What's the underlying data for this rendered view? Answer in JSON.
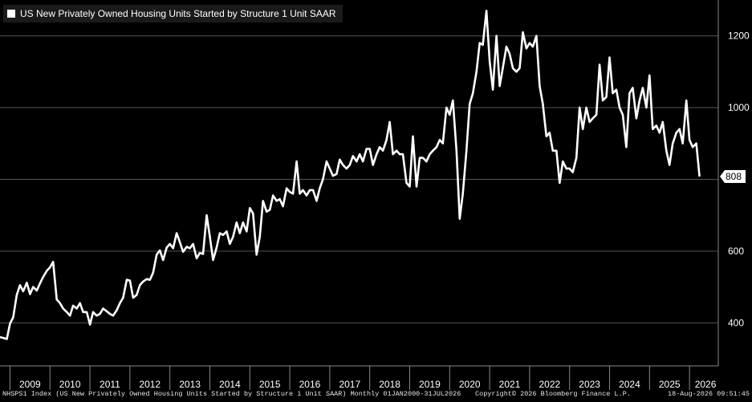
{
  "chart_data": {
    "type": "line",
    "title": "US New Privately Owned Housing Units Started by Structure 1 Unit SAAR",
    "series": [
      {
        "name": "US New Privately Owned Housing Units Started by Structure 1 Unit SAAR",
        "color": "#ffffff",
        "last_value_label": "808",
        "values": [
          [
            2008.75,
            360
          ],
          [
            2008.83,
            358
          ],
          [
            2008.92,
            355
          ],
          [
            2009.0,
            398
          ],
          [
            2009.08,
            415
          ],
          [
            2009.17,
            478
          ],
          [
            2009.25,
            505
          ],
          [
            2009.33,
            488
          ],
          [
            2009.42,
            512
          ],
          [
            2009.5,
            480
          ],
          [
            2009.58,
            500
          ],
          [
            2009.67,
            490
          ],
          [
            2009.75,
            510
          ],
          [
            2009.83,
            528
          ],
          [
            2009.92,
            545
          ],
          [
            2010.0,
            555
          ],
          [
            2010.08,
            570
          ],
          [
            2010.17,
            465
          ],
          [
            2010.25,
            455
          ],
          [
            2010.33,
            440
          ],
          [
            2010.42,
            430
          ],
          [
            2010.5,
            420
          ],
          [
            2010.58,
            448
          ],
          [
            2010.67,
            440
          ],
          [
            2010.75,
            455
          ],
          [
            2010.83,
            430
          ],
          [
            2010.92,
            430
          ],
          [
            2011.0,
            395
          ],
          [
            2011.08,
            430
          ],
          [
            2011.17,
            420
          ],
          [
            2011.25,
            425
          ],
          [
            2011.33,
            440
          ],
          [
            2011.42,
            432
          ],
          [
            2011.5,
            425
          ],
          [
            2011.58,
            420
          ],
          [
            2011.67,
            435
          ],
          [
            2011.75,
            455
          ],
          [
            2011.83,
            470
          ],
          [
            2011.92,
            520
          ],
          [
            2012.0,
            518
          ],
          [
            2012.08,
            470
          ],
          [
            2012.17,
            478
          ],
          [
            2012.25,
            505
          ],
          [
            2012.33,
            515
          ],
          [
            2012.42,
            522
          ],
          [
            2012.5,
            520
          ],
          [
            2012.58,
            540
          ],
          [
            2012.67,
            590
          ],
          [
            2012.75,
            602
          ],
          [
            2012.83,
            575
          ],
          [
            2012.92,
            610
          ],
          [
            2013.0,
            620
          ],
          [
            2013.08,
            608
          ],
          [
            2013.17,
            650
          ],
          [
            2013.25,
            625
          ],
          [
            2013.33,
            598
          ],
          [
            2013.42,
            612
          ],
          [
            2013.5,
            608
          ],
          [
            2013.58,
            620
          ],
          [
            2013.67,
            580
          ],
          [
            2013.75,
            595
          ],
          [
            2013.83,
            592
          ],
          [
            2013.92,
            700
          ],
          [
            2014.0,
            640
          ],
          [
            2014.08,
            575
          ],
          [
            2014.17,
            610
          ],
          [
            2014.25,
            650
          ],
          [
            2014.33,
            645
          ],
          [
            2014.42,
            655
          ],
          [
            2014.5,
            620
          ],
          [
            2014.58,
            640
          ],
          [
            2014.67,
            680
          ],
          [
            2014.75,
            650
          ],
          [
            2014.83,
            680
          ],
          [
            2014.92,
            655
          ],
          [
            2015.0,
            720
          ],
          [
            2015.08,
            705
          ],
          [
            2015.17,
            590
          ],
          [
            2015.25,
            640
          ],
          [
            2015.33,
            740
          ],
          [
            2015.42,
            710
          ],
          [
            2015.5,
            715
          ],
          [
            2015.58,
            755
          ],
          [
            2015.67,
            740
          ],
          [
            2015.75,
            745
          ],
          [
            2015.83,
            725
          ],
          [
            2015.92,
            775
          ],
          [
            2016.0,
            765
          ],
          [
            2016.08,
            760
          ],
          [
            2016.17,
            850
          ],
          [
            2016.25,
            760
          ],
          [
            2016.33,
            770
          ],
          [
            2016.42,
            755
          ],
          [
            2016.5,
            770
          ],
          [
            2016.58,
            770
          ],
          [
            2016.67,
            740
          ],
          [
            2016.75,
            775
          ],
          [
            2016.83,
            800
          ],
          [
            2016.92,
            850
          ],
          [
            2017.0,
            830
          ],
          [
            2017.08,
            810
          ],
          [
            2017.17,
            815
          ],
          [
            2017.25,
            855
          ],
          [
            2017.33,
            840
          ],
          [
            2017.42,
            830
          ],
          [
            2017.5,
            840
          ],
          [
            2017.58,
            865
          ],
          [
            2017.67,
            850
          ],
          [
            2017.75,
            870
          ],
          [
            2017.83,
            850
          ],
          [
            2017.92,
            885
          ],
          [
            2018.0,
            885
          ],
          [
            2018.08,
            840
          ],
          [
            2018.17,
            870
          ],
          [
            2018.25,
            890
          ],
          [
            2018.33,
            880
          ],
          [
            2018.42,
            910
          ],
          [
            2018.5,
            960
          ],
          [
            2018.58,
            870
          ],
          [
            2018.67,
            880
          ],
          [
            2018.75,
            870
          ],
          [
            2018.83,
            870
          ],
          [
            2018.92,
            790
          ],
          [
            2019.0,
            780
          ],
          [
            2019.08,
            920
          ],
          [
            2019.17,
            780
          ],
          [
            2019.25,
            860
          ],
          [
            2019.33,
            860
          ],
          [
            2019.42,
            850
          ],
          [
            2019.5,
            870
          ],
          [
            2019.58,
            880
          ],
          [
            2019.67,
            890
          ],
          [
            2019.75,
            910
          ],
          [
            2019.83,
            900
          ],
          [
            2019.92,
            1000
          ],
          [
            2020.0,
            980
          ],
          [
            2020.08,
            1020
          ],
          [
            2020.17,
            880
          ],
          [
            2020.25,
            690
          ],
          [
            2020.33,
            760
          ],
          [
            2020.42,
            880
          ],
          [
            2020.5,
            1010
          ],
          [
            2020.58,
            1040
          ],
          [
            2020.67,
            1100
          ],
          [
            2020.75,
            1180
          ],
          [
            2020.83,
            1175
          ],
          [
            2020.92,
            1270
          ],
          [
            2021.0,
            1130
          ],
          [
            2021.08,
            1050
          ],
          [
            2021.17,
            1200
          ],
          [
            2021.25,
            1060
          ],
          [
            2021.33,
            1110
          ],
          [
            2021.42,
            1170
          ],
          [
            2021.5,
            1150
          ],
          [
            2021.58,
            1110
          ],
          [
            2021.67,
            1100
          ],
          [
            2021.75,
            1110
          ],
          [
            2021.83,
            1210
          ],
          [
            2021.92,
            1165
          ],
          [
            2022.0,
            1180
          ],
          [
            2022.08,
            1170
          ],
          [
            2022.17,
            1200
          ],
          [
            2022.25,
            1060
          ],
          [
            2022.33,
            1010
          ],
          [
            2022.42,
            920
          ],
          [
            2022.5,
            930
          ],
          [
            2022.58,
            880
          ],
          [
            2022.67,
            880
          ],
          [
            2022.75,
            790
          ],
          [
            2022.83,
            850
          ],
          [
            2022.92,
            830
          ],
          [
            2023.0,
            830
          ],
          [
            2023.08,
            820
          ],
          [
            2023.17,
            860
          ],
          [
            2023.25,
            1000
          ],
          [
            2023.33,
            940
          ],
          [
            2023.42,
            1000
          ],
          [
            2023.5,
            960
          ],
          [
            2023.58,
            970
          ],
          [
            2023.67,
            980
          ],
          [
            2023.75,
            1120
          ],
          [
            2023.83,
            1020
          ],
          [
            2023.92,
            1030
          ],
          [
            2024.0,
            1140
          ],
          [
            2024.08,
            1040
          ],
          [
            2024.17,
            1050
          ],
          [
            2024.25,
            1000
          ],
          [
            2024.33,
            980
          ],
          [
            2024.42,
            890
          ],
          [
            2024.5,
            1040
          ],
          [
            2024.58,
            1055
          ],
          [
            2024.67,
            970
          ],
          [
            2024.75,
            1020
          ],
          [
            2024.83,
            1055
          ],
          [
            2024.92,
            1000
          ],
          [
            2025.0,
            1090
          ],
          [
            2025.08,
            940
          ],
          [
            2025.17,
            950
          ],
          [
            2025.25,
            930
          ],
          [
            2025.33,
            960
          ],
          [
            2025.42,
            880
          ],
          [
            2025.5,
            840
          ],
          [
            2025.58,
            900
          ],
          [
            2025.67,
            930
          ],
          [
            2025.75,
            940
          ],
          [
            2025.83,
            900
          ],
          [
            2025.92,
            1020
          ],
          [
            2026.0,
            910
          ],
          [
            2026.08,
            890
          ],
          [
            2026.17,
            900
          ],
          [
            2026.25,
            808
          ]
        ]
      }
    ],
    "xticks": [
      {
        "label": "2009",
        "value": 2009.5
      },
      {
        "label": "2010",
        "value": 2010.5
      },
      {
        "label": "2011",
        "value": 2011.5
      },
      {
        "label": "2012",
        "value": 2012.5
      },
      {
        "label": "2013",
        "value": 2013.5
      },
      {
        "label": "2014",
        "value": 2014.5
      },
      {
        "label": "2015",
        "value": 2015.5
      },
      {
        "label": "2016",
        "value": 2016.5
      },
      {
        "label": "2017",
        "value": 2017.5
      },
      {
        "label": "2018",
        "value": 2018.5
      },
      {
        "label": "2019",
        "value": 2019.5
      },
      {
        "label": "2020",
        "value": 2020.5
      },
      {
        "label": "2021",
        "value": 2021.5
      },
      {
        "label": "2022",
        "value": 2022.5
      },
      {
        "label": "2023",
        "value": 2023.5
      },
      {
        "label": "2024",
        "value": 2024.5
      },
      {
        "label": "2025",
        "value": 2025.5
      },
      {
        "label": "2026",
        "value": 2026.4
      }
    ],
    "yticks": [
      400,
      600,
      800,
      1000,
      1200
    ],
    "xlim": [
      2008.75,
      2026.72
    ],
    "ylim": [
      280,
      1300
    ],
    "grid": true,
    "legend": "top-left"
  },
  "footer": {
    "left": "NHSPS1 Index (US New Privately Owned Housing Units Started by Structure 1 Unit SAAR) Monthly 01JAN2000-31JUL2026",
    "mid": "Copyright© 2026 Bloomberg Finance L.P.",
    "right": "18-Aug-2026 09:51:45"
  },
  "colors": {
    "background": "#000000",
    "line": "#ffffff",
    "grid": "#555555"
  }
}
